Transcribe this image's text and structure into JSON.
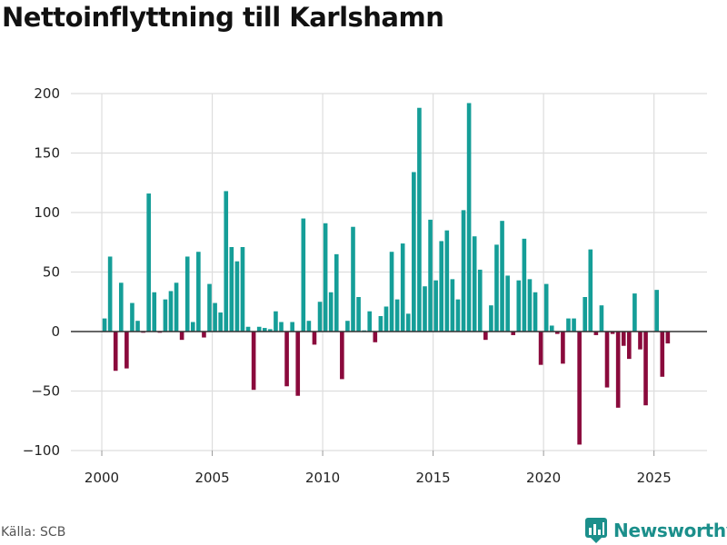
{
  "title": "Nettoinflyttning till Karlshamn",
  "source": "Källa: SCB",
  "brand": {
    "name": "Newsworthy",
    "icon": "newsworthy-logo-icon"
  },
  "colors": {
    "positive": "#159e98",
    "negative": "#8a0a3c",
    "grid": "#dddddd",
    "zero_line": "#333333",
    "brand": "#1b8f8b"
  },
  "chart_data": {
    "type": "bar",
    "title": "Nettoinflyttning till Karlshamn",
    "xlabel": "",
    "ylabel": "",
    "ylim": [
      -100,
      200
    ],
    "xlim": [
      1998.6,
      2027.4
    ],
    "yticks": [
      -100,
      -50,
      0,
      50,
      100,
      150,
      200
    ],
    "ytick_labels": [
      "−100",
      "−50",
      "0",
      "50",
      "100",
      "150",
      "200"
    ],
    "xticks": [
      2000,
      2005,
      2010,
      2015,
      2020,
      2025
    ],
    "xtick_labels": [
      "2000",
      "2005",
      "2010",
      "2015",
      "2020",
      "2025"
    ],
    "grid": true,
    "granularity": "quarterly",
    "bar_width_years": 0.19,
    "series": [
      {
        "name": "Nettoinflyttning",
        "start_x": 2000.125,
        "step": 0.25,
        "values": [
          11,
          63,
          -33,
          41,
          -31,
          24,
          9,
          -1,
          116,
          33,
          -1,
          27,
          34,
          41,
          -7,
          63,
          8,
          67,
          -5,
          40,
          24,
          16,
          118,
          71,
          59,
          71,
          4,
          -49,
          4,
          3,
          2,
          17,
          8,
          -46,
          8,
          -54,
          95,
          9,
          -11,
          25,
          91,
          33,
          65,
          -40,
          9,
          88,
          29,
          1,
          17,
          -9,
          13,
          21,
          67,
          27,
          74,
          15,
          134,
          188,
          38,
          94,
          43,
          76,
          85,
          44,
          27,
          102,
          192,
          80,
          52,
          -7,
          22,
          73,
          93,
          47,
          -3,
          43,
          78,
          44,
          33,
          -28,
          40,
          5,
          -2,
          -27,
          11,
          11,
          -95,
          29,
          69,
          -3,
          22,
          -47,
          -2,
          -64,
          -12,
          -23,
          32,
          -15,
          -62,
          0,
          35,
          -38,
          -10
        ]
      }
    ]
  }
}
